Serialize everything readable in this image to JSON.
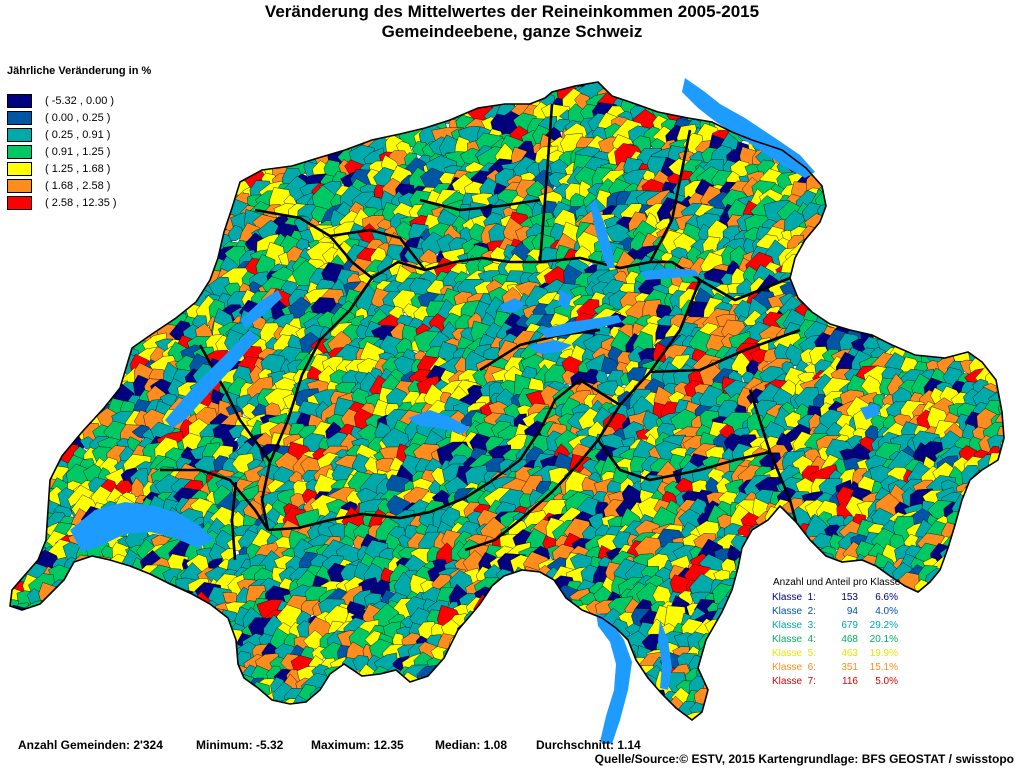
{
  "title": {
    "line1": "Veränderung des Mittelwertes der Reineinkommen 2005-2015",
    "line2": "Gemeindeebene, ganze Schweiz"
  },
  "legend": {
    "title": "Jährliche Veränderung in %",
    "classes": [
      {
        "label": "( -5.32 , 0.00 )",
        "color": "#000080"
      },
      {
        "label": "( 0.00 , 0.25 )",
        "color": "#0055A5"
      },
      {
        "label": "( 0.25 , 0.91 )",
        "color": "#00AAAA"
      },
      {
        "label": "( 0.91 , 1.25 )",
        "color": "#00C864"
      },
      {
        "label": "( 1.25 , 1.68 )",
        "color": "#FFFF00"
      },
      {
        "label": "( 1.68 , 2.58 )",
        "color": "#FF8C1E"
      },
      {
        "label": "( 2.58 , 12.35 )",
        "color": "#FF0000"
      }
    ]
  },
  "stats": {
    "title": "Anzahl und Anteil pro Klasse",
    "rows": [
      {
        "label": "Klasse  1:",
        "count": "153",
        "pct": "6.6%",
        "color": "#000080"
      },
      {
        "label": "Klasse  2:",
        "count": "94",
        "pct": "4.0%",
        "color": "#0055A5"
      },
      {
        "label": "Klasse  3:",
        "count": "679",
        "pct": "29.2%",
        "color": "#00AAAA"
      },
      {
        "label": "Klasse  4:",
        "count": "468",
        "pct": "20.1%",
        "color": "#00B060"
      },
      {
        "label": "Klasse  5:",
        "count": "463",
        "pct": "19.9%",
        "color": "#E6E600"
      },
      {
        "label": "Klasse  6:",
        "count": "351",
        "pct": "15.1%",
        "color": "#FF8C1E"
      },
      {
        "label": "Klasse  7:",
        "count": "116",
        "pct": "5.0%",
        "color": "#E00000"
      }
    ]
  },
  "footer": {
    "anzahl": "Anzahl Gemeinden: 2'324",
    "minimum": "Minimum: -5.32",
    "maximum": "Maximum: 12.35",
    "median": "Median: 1.08",
    "durchschnitt": "Durchschnitt: 1.14",
    "source": "Quelle/Source:© ESTV, 2015 Kartengrundlage: BFS GEOSTAT / swisstopo"
  },
  "colors": {
    "lake": "#1E9BFF",
    "border": "#000000"
  }
}
